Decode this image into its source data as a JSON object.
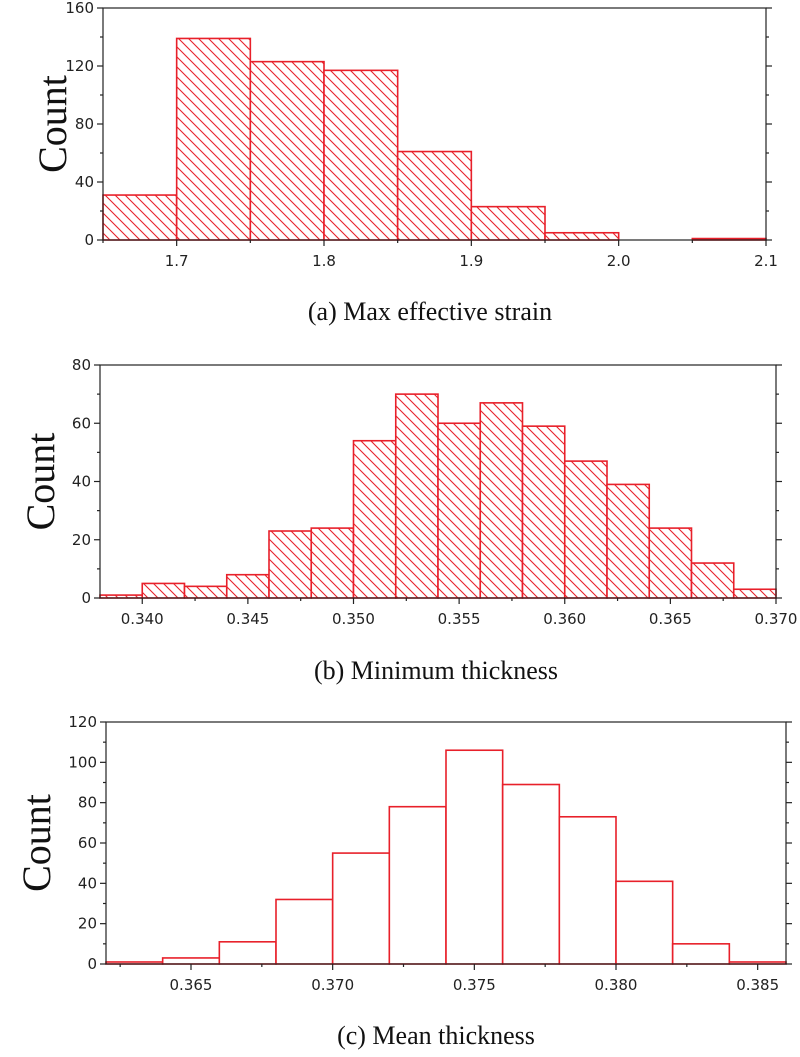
{
  "colors": {
    "bar_stroke": "#e8202a",
    "axis": "#222222",
    "background": "#ffffff"
  },
  "chart_data": [
    {
      "type": "bar",
      "id": "a",
      "caption": "(a) Max effective strain",
      "ylabel": "Count",
      "xlabel": "",
      "hatched": true,
      "bin_edges": [
        1.65,
        1.7,
        1.75,
        1.8,
        1.85,
        1.9,
        1.95,
        2.0,
        2.05,
        2.1
      ],
      "values": [
        31,
        139,
        123,
        117,
        61,
        23,
        5,
        0,
        1
      ],
      "xlim": [
        1.65,
        2.1
      ],
      "ylim": [
        0,
        160
      ],
      "xticks": [
        1.7,
        1.8,
        1.9,
        2.0,
        2.1
      ],
      "xtick_labels": [
        "1.7",
        "1.8",
        "1.9",
        "2.0",
        "2.1"
      ],
      "yticks": [
        0,
        40,
        80,
        120,
        160
      ],
      "ytick_labels": [
        "0",
        "40",
        "80",
        "120",
        "160"
      ]
    },
    {
      "type": "bar",
      "id": "b",
      "caption": "(b) Minimum thickness",
      "ylabel": "Count",
      "xlabel": "",
      "hatched": true,
      "bin_edges": [
        0.338,
        0.34,
        0.342,
        0.344,
        0.346,
        0.348,
        0.35,
        0.352,
        0.354,
        0.356,
        0.358,
        0.36,
        0.362,
        0.364,
        0.366,
        0.368,
        0.37
      ],
      "values": [
        1,
        5,
        4,
        8,
        23,
        24,
        54,
        70,
        60,
        67,
        59,
        47,
        39,
        24,
        12,
        3
      ],
      "xlim": [
        0.338,
        0.37
      ],
      "ylim": [
        0,
        80
      ],
      "xticks": [
        0.34,
        0.345,
        0.35,
        0.355,
        0.36,
        0.365,
        0.37
      ],
      "xtick_labels": [
        "0.340",
        "0.345",
        "0.350",
        "0.355",
        "0.360",
        "0.365",
        "0.370"
      ],
      "yticks": [
        0,
        20,
        40,
        60,
        80
      ],
      "ytick_labels": [
        "0",
        "20",
        "40",
        "60",
        "80"
      ]
    },
    {
      "type": "bar",
      "id": "c",
      "caption": "(c) Mean thickness",
      "ylabel": "Count",
      "xlabel": "",
      "hatched": false,
      "bin_edges": [
        0.362,
        0.364,
        0.366,
        0.368,
        0.37,
        0.372,
        0.374,
        0.376,
        0.378,
        0.38,
        0.382,
        0.384,
        0.386
      ],
      "values": [
        1,
        3,
        11,
        32,
        55,
        78,
        106,
        89,
        73,
        41,
        10,
        1
      ],
      "xlim": [
        0.362,
        0.386
      ],
      "ylim": [
        0,
        120
      ],
      "xticks": [
        0.365,
        0.37,
        0.375,
        0.38,
        0.385
      ],
      "xtick_labels": [
        "0.365",
        "0.370",
        "0.375",
        "0.380",
        "0.385"
      ],
      "yticks": [
        0,
        20,
        40,
        60,
        80,
        100,
        120
      ],
      "ytick_labels": [
        "0",
        "20",
        "40",
        "60",
        "80",
        "100",
        "120"
      ]
    }
  ]
}
